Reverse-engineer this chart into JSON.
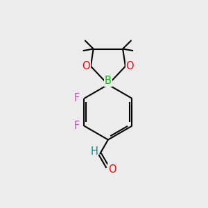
{
  "bg_color": "#ececec",
  "bond_color": "#000000",
  "bond_width": 1.5,
  "atom_colors": {
    "O": "#ff0000",
    "B": "#00bb00",
    "F": "#cc44cc",
    "H": "#008888",
    "C": "#000000"
  },
  "font_size": 10.5,
  "fig_size": [
    3.0,
    3.0
  ],
  "dpi": 100
}
